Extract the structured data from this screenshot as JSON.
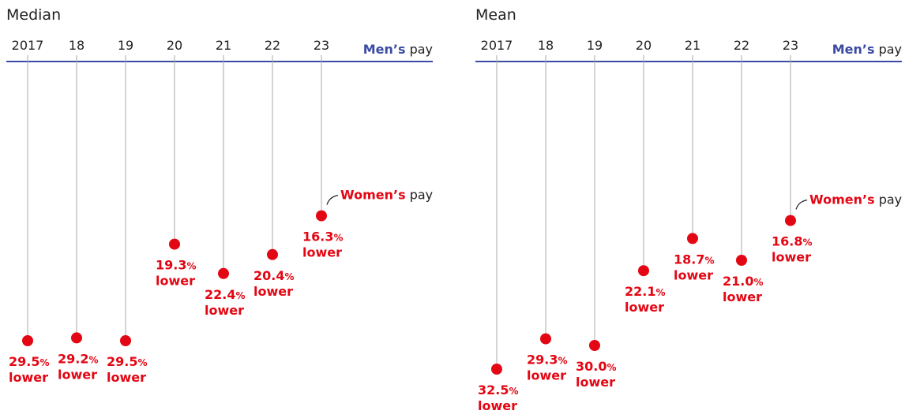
{
  "chart_data": [
    {
      "type": "dot",
      "title": "Median",
      "categories": [
        "2017",
        "18",
        "19",
        "20",
        "21",
        "22",
        "23"
      ],
      "values": [
        29.5,
        29.2,
        29.5,
        19.3,
        22.4,
        20.4,
        16.3
      ],
      "value_labels": [
        "29.5",
        "29.2",
        "29.5",
        "19.3",
        "22.4",
        "20.4",
        "16.3"
      ],
      "unit": "%",
      "value_note": "lower",
      "baseline_label": {
        "name": "Men’s",
        "suffix": "pay"
      },
      "series_label": {
        "name": "Women’s",
        "suffix": "pay"
      },
      "ylim": [
        0,
        36
      ],
      "color": "#e30613",
      "baseline_color": "#3b4ba3"
    },
    {
      "type": "dot",
      "title": "Mean",
      "categories": [
        "2017",
        "18",
        "19",
        "20",
        "21",
        "22",
        "23"
      ],
      "values": [
        32.5,
        29.3,
        30.0,
        22.1,
        18.7,
        21.0,
        16.8
      ],
      "value_labels": [
        "32.5",
        "29.3",
        "30.0",
        "22.1",
        "18.7",
        "21.0",
        "16.8"
      ],
      "unit": "%",
      "value_note": "lower",
      "baseline_label": {
        "name": "Men’s",
        "suffix": "pay"
      },
      "series_label": {
        "name": "Women’s",
        "suffix": "pay"
      },
      "ylim": [
        0,
        36
      ],
      "color": "#e30613",
      "baseline_color": "#3b4ba3"
    }
  ]
}
